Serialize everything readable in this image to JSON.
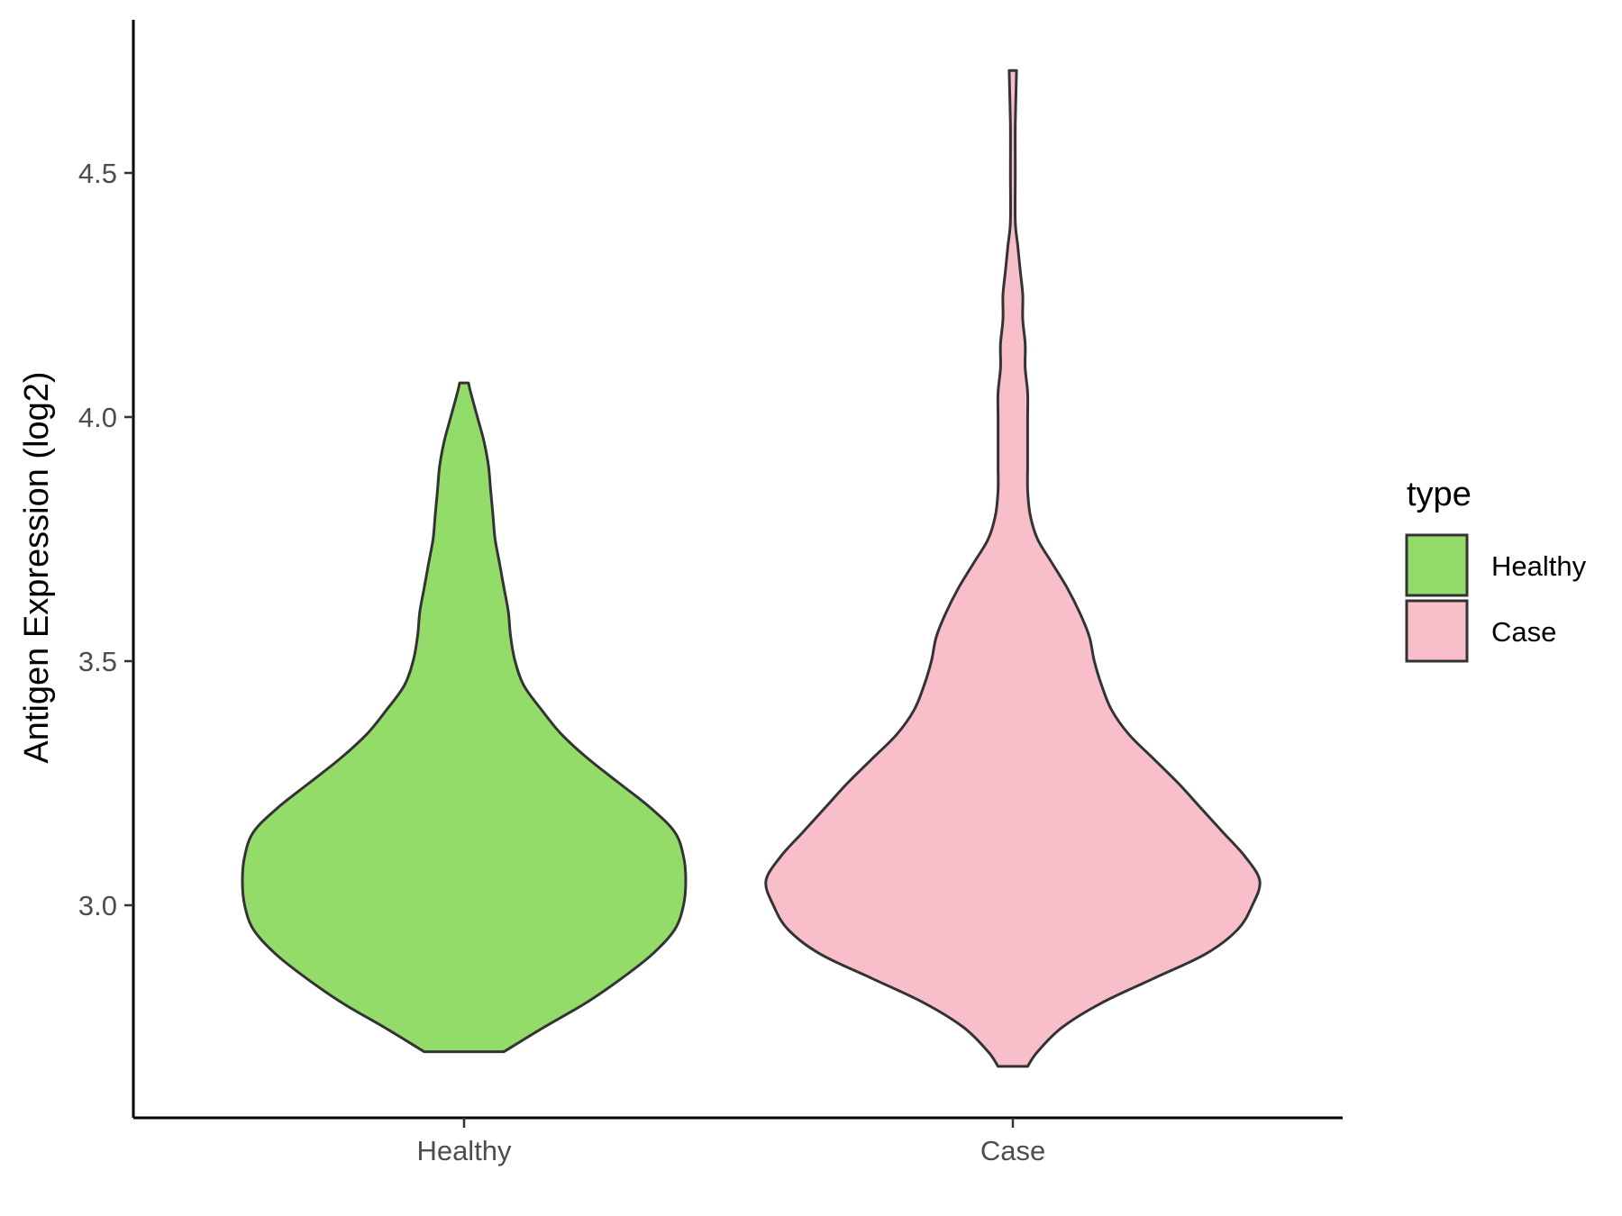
{
  "chart_data": {
    "type": "violin",
    "title": "",
    "xlabel": "",
    "ylabel": "Antigen Expression (log2)",
    "ylim": [
      2.59,
      4.75
    ],
    "yticks": [
      3.0,
      3.5,
      4.0,
      4.5
    ],
    "ytick_labels": [
      "3.0",
      "3.5",
      "4.0",
      "4.5"
    ],
    "categories": [
      "Healthy",
      "Case"
    ],
    "legend": {
      "title": "type",
      "position": "right",
      "entries": [
        {
          "label": "Healthy",
          "color": "#93dc6a"
        },
        {
          "label": "Case",
          "color": "#f8bfcb"
        }
      ]
    },
    "grid": false,
    "outline_color": "#333333",
    "series": [
      {
        "category": "Healthy",
        "color": "#93dc6a",
        "min": 2.7,
        "max": 4.07,
        "density_profile": [
          [
            2.7,
            0.18
          ],
          [
            2.75,
            0.36
          ],
          [
            2.8,
            0.55
          ],
          [
            2.85,
            0.71
          ],
          [
            2.9,
            0.85
          ],
          [
            2.95,
            0.95
          ],
          [
            3.0,
            0.99
          ],
          [
            3.05,
            1.0
          ],
          [
            3.1,
            0.99
          ],
          [
            3.15,
            0.95
          ],
          [
            3.2,
            0.84
          ],
          [
            3.25,
            0.7
          ],
          [
            3.3,
            0.56
          ],
          [
            3.35,
            0.44
          ],
          [
            3.4,
            0.35
          ],
          [
            3.45,
            0.27
          ],
          [
            3.5,
            0.23
          ],
          [
            3.55,
            0.21
          ],
          [
            3.6,
            0.2
          ],
          [
            3.65,
            0.18
          ],
          [
            3.7,
            0.16
          ],
          [
            3.75,
            0.14
          ],
          [
            3.8,
            0.13
          ],
          [
            3.85,
            0.12
          ],
          [
            3.9,
            0.11
          ],
          [
            3.95,
            0.09
          ],
          [
            4.0,
            0.06
          ],
          [
            4.05,
            0.03
          ],
          [
            4.07,
            0.02
          ]
        ]
      },
      {
        "category": "Case",
        "color": "#f8bfcb",
        "min": 2.67,
        "max": 4.71,
        "density_profile": [
          [
            2.67,
            0.06
          ],
          [
            2.7,
            0.1
          ],
          [
            2.75,
            0.2
          ],
          [
            2.8,
            0.36
          ],
          [
            2.85,
            0.57
          ],
          [
            2.9,
            0.78
          ],
          [
            2.95,
            0.91
          ],
          [
            3.0,
            0.97
          ],
          [
            3.05,
            1.0
          ],
          [
            3.1,
            0.94
          ],
          [
            3.15,
            0.85
          ],
          [
            3.2,
            0.76
          ],
          [
            3.25,
            0.67
          ],
          [
            3.3,
            0.57
          ],
          [
            3.35,
            0.47
          ],
          [
            3.4,
            0.4
          ],
          [
            3.45,
            0.36
          ],
          [
            3.5,
            0.33
          ],
          [
            3.55,
            0.31
          ],
          [
            3.6,
            0.27
          ],
          [
            3.65,
            0.22
          ],
          [
            3.7,
            0.16
          ],
          [
            3.75,
            0.1
          ],
          [
            3.8,
            0.07
          ],
          [
            3.85,
            0.06
          ],
          [
            3.9,
            0.06
          ],
          [
            3.95,
            0.06
          ],
          [
            4.0,
            0.06
          ],
          [
            4.05,
            0.06
          ],
          [
            4.1,
            0.05
          ],
          [
            4.15,
            0.05
          ],
          [
            4.2,
            0.04
          ],
          [
            4.25,
            0.04
          ],
          [
            4.3,
            0.03
          ],
          [
            4.35,
            0.02
          ],
          [
            4.4,
            0.01
          ],
          [
            4.5,
            0.01
          ],
          [
            4.6,
            0.01
          ],
          [
            4.71,
            0.015
          ]
        ]
      }
    ]
  }
}
